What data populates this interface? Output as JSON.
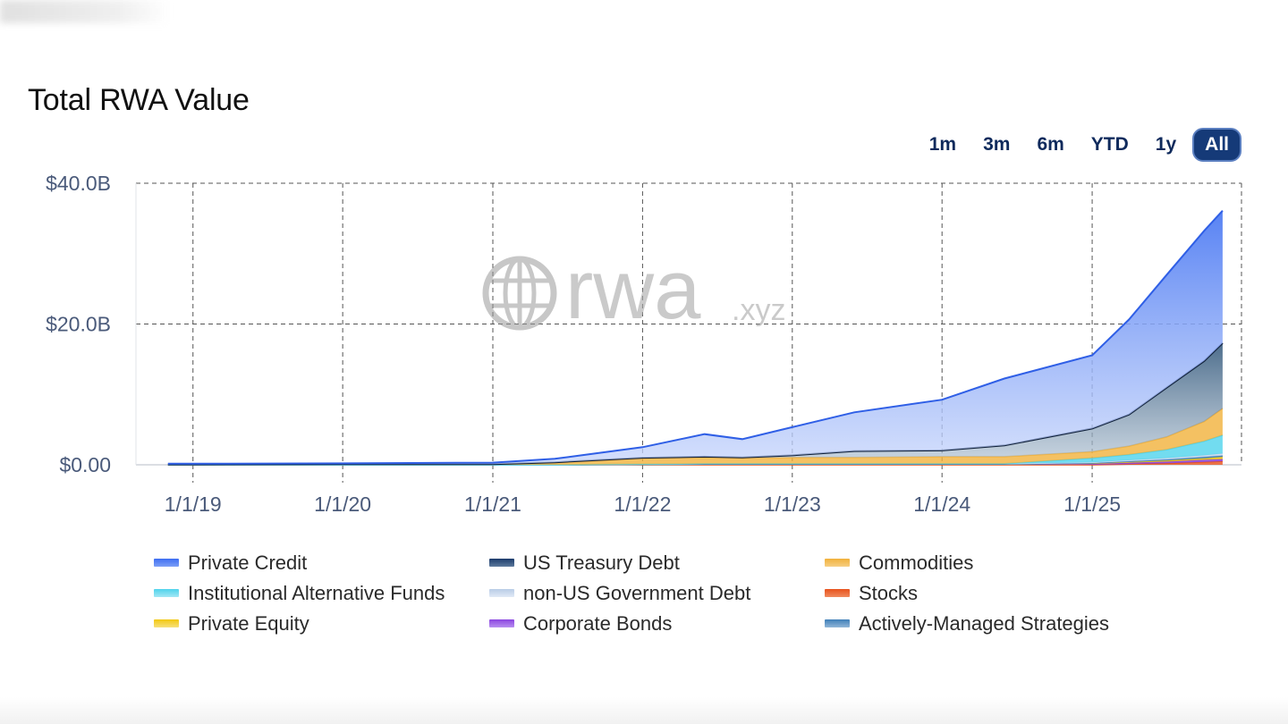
{
  "header": {
    "title": "Total RWA Value"
  },
  "range_selector": {
    "options": [
      "1m",
      "3m",
      "6m",
      "YTD",
      "1y",
      "All"
    ],
    "selected": "All"
  },
  "watermark": {
    "brand": "rwa",
    "suffix": ".xyz"
  },
  "chart_data": {
    "type": "area",
    "stacked": true,
    "grid": true,
    "legend_position": "bottom",
    "y_tick_labels": [
      "$0.00",
      "$20.0B",
      "$40.0B"
    ],
    "y_unit": "USD billions",
    "ylim": [
      0,
      40
    ],
    "x_tick_labels": [
      "1/1/19",
      "1/1/20",
      "1/1/21",
      "1/1/22",
      "1/1/23",
      "1/1/24",
      "1/1/25"
    ],
    "x": [
      "2018-11-01",
      "2019-01-01",
      "2020-01-01",
      "2021-01-01",
      "2021-06-01",
      "2022-01-01",
      "2022-06-01",
      "2022-09-01",
      "2023-01-01",
      "2023-06-01",
      "2024-01-01",
      "2024-06-01",
      "2025-01-01",
      "2025-04-01",
      "2025-07-01",
      "2025-10-01",
      "2025-11-15"
    ],
    "series": [
      {
        "name": "Stocks",
        "color": "#e8521c",
        "values": [
          0,
          0,
          0,
          0,
          0,
          0,
          0,
          0,
          0,
          0,
          0,
          0,
          0,
          0.1,
          0.2,
          0.4,
          0.5
        ]
      },
      {
        "name": "Corporate Bonds",
        "color": "#8a44e0",
        "values": [
          0,
          0,
          0,
          0,
          0,
          0.05,
          0.1,
          0.1,
          0.1,
          0.1,
          0.1,
          0.1,
          0.15,
          0.2,
          0.25,
          0.3,
          0.3
        ]
      },
      {
        "name": "Private Equity",
        "color": "#f2c811",
        "values": [
          0,
          0,
          0,
          0,
          0,
          0,
          0,
          0,
          0,
          0,
          0,
          0,
          0.05,
          0.1,
          0.15,
          0.2,
          0.3
        ]
      },
      {
        "name": "Actively-Managed Strategies",
        "color": "#3f7fb8",
        "values": [
          0,
          0,
          0,
          0,
          0,
          0,
          0,
          0,
          0,
          0,
          0,
          0,
          0.05,
          0.1,
          0.15,
          0.2,
          0.2
        ]
      },
      {
        "name": "non-US Government Debt",
        "color": "#c9d9ee",
        "values": [
          0,
          0,
          0,
          0,
          0,
          0.05,
          0.05,
          0.05,
          0.05,
          0.05,
          0.05,
          0.05,
          0.1,
          0.15,
          0.2,
          0.25,
          0.3
        ]
      },
      {
        "name": "Institutional Alternative Funds",
        "color": "#4fd3ec",
        "values": [
          0,
          0,
          0,
          0,
          0,
          0,
          0,
          0,
          0,
          0,
          0,
          0,
          0.6,
          0.8,
          1.2,
          2.0,
          2.6
        ]
      },
      {
        "name": "Commodities",
        "color": "#f1b13b",
        "values": [
          0.05,
          0.05,
          0.1,
          0.1,
          0.3,
          0.8,
          0.9,
          0.8,
          0.9,
          0.9,
          1.0,
          1.0,
          0.9,
          1.2,
          1.8,
          2.8,
          3.8
        ]
      },
      {
        "name": "US Treasury Debt",
        "color": "#1b3a6b",
        "values": [
          0,
          0,
          0,
          0,
          0.05,
          0.1,
          0.1,
          0.1,
          0.3,
          0.9,
          0.9,
          1.6,
          3.3,
          4.5,
          7.0,
          8.6,
          9.3
        ]
      },
      {
        "name": "Private Credit",
        "color": "#3d6df2",
        "values": [
          0.1,
          0.1,
          0.1,
          0.2,
          0.5,
          1.5,
          3.2,
          2.6,
          4.0,
          5.5,
          7.2,
          9.5,
          10.4,
          13.5,
          16.0,
          18.5,
          18.8
        ]
      }
    ]
  },
  "legend": {
    "items": [
      {
        "label": "Private Credit",
        "color": "#3d6df2"
      },
      {
        "label": "US Treasury Debt",
        "color": "#1b3a6b"
      },
      {
        "label": "Commodities",
        "color": "#f1b13b"
      },
      {
        "label": "Institutional Alternative Funds",
        "color": "#4fd3ec"
      },
      {
        "label": "non-US Government Debt",
        "color": "#c9d9ee"
      },
      {
        "label": "Stocks",
        "color": "#e8521c"
      },
      {
        "label": "Private Equity",
        "color": "#f2c811"
      },
      {
        "label": "Corporate Bonds",
        "color": "#8a44e0"
      },
      {
        "label": "Actively-Managed Strategies",
        "color": "#3f7fb8"
      }
    ]
  }
}
